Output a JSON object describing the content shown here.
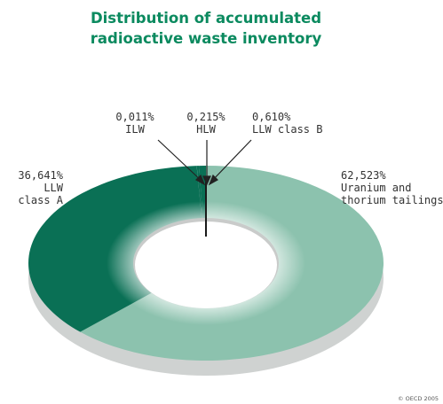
{
  "chart_data": {
    "type": "pie",
    "donut": true,
    "title_lines": [
      "Distribution of accumulated",
      "radioactive waste inventory"
    ],
    "slices": [
      {
        "label_lines": [
          "62,523%",
          "Uranium and",
          "thorium tailings"
        ],
        "value": 62.523,
        "color": "#8cc2ae"
      },
      {
        "label_lines": [
          "36,641%",
          "LLW",
          "class A"
        ],
        "value": 36.641,
        "color": "#0a7055"
      },
      {
        "label_lines": [
          "0,011%",
          "ILW"
        ],
        "value": 0.011,
        "color": "#0a7055"
      },
      {
        "label_lines": [
          "0,215%",
          "HLW"
        ],
        "value": 0.215,
        "color": "#0a7055"
      },
      {
        "label_lines": [
          "0,610%",
          "LLW class B"
        ],
        "value": 0.61,
        "color": "#0a7055"
      }
    ],
    "title_color": "#0b8a5f",
    "divider_color": "#1a1a1a",
    "credit": "© OECD 2005"
  }
}
